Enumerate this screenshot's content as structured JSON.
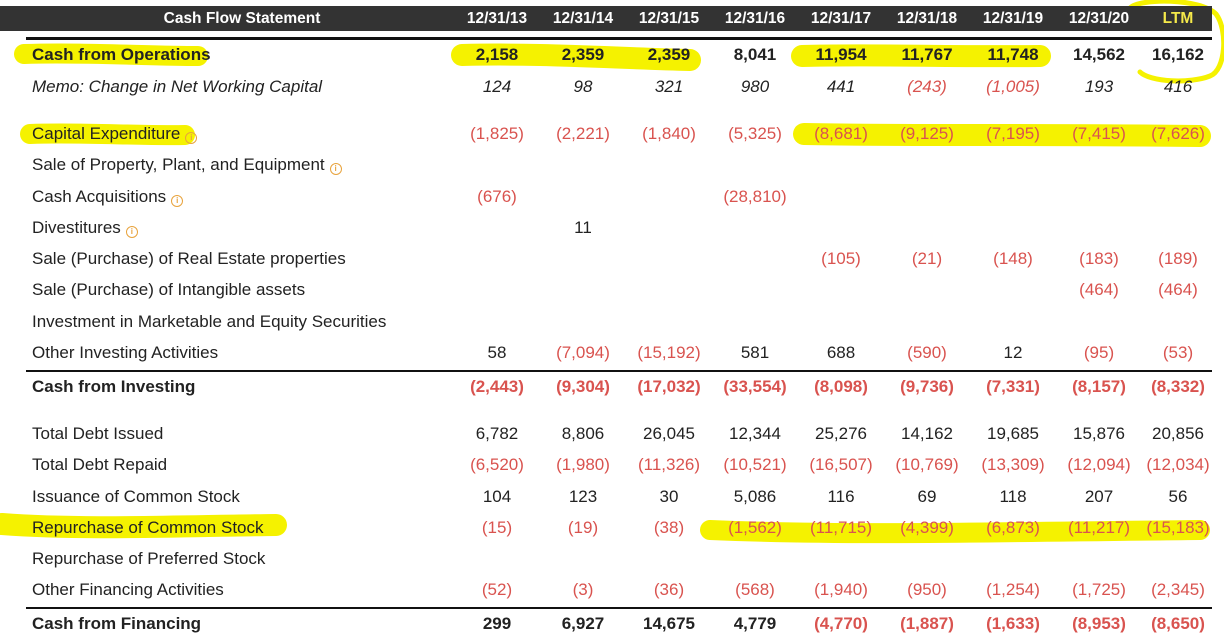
{
  "header": {
    "title": "Cash Flow Statement",
    "years": [
      "12/31/13",
      "12/31/14",
      "12/31/15",
      "12/31/16",
      "12/31/17",
      "12/31/18",
      "12/31/19",
      "12/31/20",
      "LTM"
    ]
  },
  "colors": {
    "negative": "#d9534f",
    "header_bg": "#333333",
    "ltm_header": "#f5e94a",
    "highlighter": "#f5f200",
    "info_icon": "#e8a33d"
  },
  "rows": [
    {
      "label": "Cash from Operations",
      "style": "bold",
      "info": false,
      "values": [
        "2,158",
        "2,359",
        "2,359",
        "8,041",
        "11,954",
        "11,767",
        "11,748",
        "14,562",
        "16,162"
      ]
    },
    {
      "label": "Memo: Change in Net Working Capital",
      "style": "italic",
      "info": false,
      "values": [
        "124",
        "98",
        "321",
        "980",
        "441",
        "(243)",
        "(1,005)",
        "193",
        "416"
      ]
    },
    {
      "label": "Capital Expenditure",
      "style": "normal",
      "info": true,
      "values": [
        "(1,825)",
        "(2,221)",
        "(1,840)",
        "(5,325)",
        "(8,681)",
        "(9,125)",
        "(7,195)",
        "(7,415)",
        "(7,626)"
      ]
    },
    {
      "label": "Sale of Property, Plant, and Equipment",
      "style": "normal",
      "info": true,
      "values": [
        "",
        "",
        "",
        "",
        "",
        "",
        "",
        "",
        ""
      ]
    },
    {
      "label": "Cash Acquisitions",
      "style": "normal",
      "info": true,
      "values": [
        "(676)",
        "",
        "",
        "(28,810)",
        "",
        "",
        "",
        "",
        ""
      ]
    },
    {
      "label": "Divestitures",
      "style": "normal",
      "info": true,
      "values": [
        "",
        "11",
        "",
        "",
        "",
        "",
        "",
        "",
        ""
      ]
    },
    {
      "label": "Sale (Purchase) of Real Estate properties",
      "style": "normal",
      "info": false,
      "values": [
        "",
        "",
        "",
        "",
        "(105)",
        "(21)",
        "(148)",
        "(183)",
        "(189)"
      ]
    },
    {
      "label": "Sale (Purchase) of Intangible assets",
      "style": "normal",
      "info": false,
      "values": [
        "",
        "",
        "",
        "",
        "",
        "",
        "",
        "(464)",
        "(464)"
      ]
    },
    {
      "label": "Investment in Marketable and Equity Securities",
      "style": "normal",
      "info": false,
      "values": [
        "",
        "",
        "",
        "",
        "",
        "",
        "",
        "",
        ""
      ]
    },
    {
      "label": "Other Investing Activities",
      "style": "normal",
      "info": false,
      "values": [
        "58",
        "(7,094)",
        "(15,192)",
        "581",
        "688",
        "(590)",
        "12",
        "(95)",
        "(53)"
      ]
    },
    {
      "label": "Cash from Investing",
      "style": "bold",
      "info": false,
      "values": [
        "(2,443)",
        "(9,304)",
        "(17,032)",
        "(33,554)",
        "(8,098)",
        "(9,736)",
        "(7,331)",
        "(8,157)",
        "(8,332)"
      ]
    },
    {
      "label": "Total Debt Issued",
      "style": "normal",
      "info": false,
      "values": [
        "6,782",
        "8,806",
        "26,045",
        "12,344",
        "25,276",
        "14,162",
        "19,685",
        "15,876",
        "20,856"
      ]
    },
    {
      "label": "Total Debt Repaid",
      "style": "normal",
      "info": false,
      "values": [
        "(6,520)",
        "(1,980)",
        "(11,326)",
        "(10,521)",
        "(16,507)",
        "(10,769)",
        "(13,309)",
        "(12,094)",
        "(12,034)"
      ]
    },
    {
      "label": "Issuance of Common Stock",
      "style": "normal",
      "info": false,
      "values": [
        "104",
        "123",
        "30",
        "5,086",
        "116",
        "69",
        "118",
        "207",
        "56"
      ]
    },
    {
      "label": "Repurchase of Common Stock",
      "style": "normal",
      "info": false,
      "values": [
        "(15)",
        "(19)",
        "(38)",
        "(1,562)",
        "(11,715)",
        "(4,399)",
        "(6,873)",
        "(11,217)",
        "(15,183)"
      ]
    },
    {
      "label": "Repurchase of Preferred Stock",
      "style": "normal",
      "info": false,
      "values": [
        "",
        "",
        "",
        "",
        "",
        "",
        "",
        "",
        ""
      ]
    },
    {
      "label": "Other Financing Activities",
      "style": "normal",
      "info": false,
      "values": [
        "(52)",
        "(3)",
        "(36)",
        "(568)",
        "(1,940)",
        "(950)",
        "(1,254)",
        "(1,725)",
        "(2,345)"
      ]
    },
    {
      "label": "Cash from Financing",
      "style": "bold",
      "info": false,
      "values": [
        "299",
        "6,927",
        "14,675",
        "4,779",
        "(4,770)",
        "(1,887)",
        "(1,633)",
        "(8,953)",
        "(8,650)"
      ]
    }
  ]
}
